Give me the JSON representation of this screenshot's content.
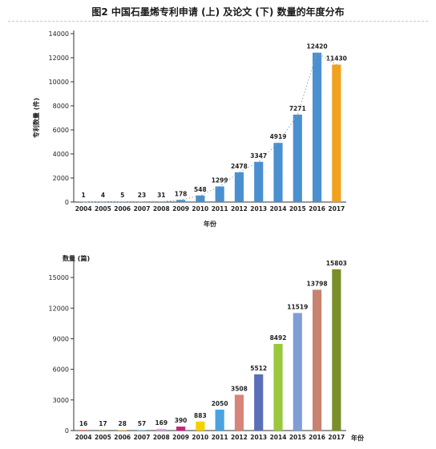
{
  "header": {
    "title": "图2  中国石墨烯专利申请 (上) 及论文 (下) 数量的年度分布"
  },
  "chart_data": [
    {
      "type": "bar",
      "ylabel": "专利数量 (件)",
      "xlabel": "年份",
      "categories": [
        "2004",
        "2005",
        "2006",
        "2007",
        "2008",
        "2009",
        "2010",
        "2011",
        "2012",
        "2013",
        "2014",
        "2015",
        "2016",
        "2017"
      ],
      "values": [
        1,
        4,
        5,
        23,
        31,
        178,
        548,
        1299,
        2478,
        3347,
        4919,
        7271,
        12420,
        11430
      ],
      "yticks": [
        0,
        2000,
        4000,
        6000,
        8000,
        10000,
        12000,
        14000
      ],
      "ylim": [
        0,
        14000
      ],
      "colors": [
        "#4a90d0",
        "#4a90d0",
        "#4a90d0",
        "#4a90d0",
        "#4a90d0",
        "#4a90d0",
        "#4a90d0",
        "#4a90d0",
        "#4a90d0",
        "#4a90d0",
        "#4a90d0",
        "#4a90d0",
        "#4a90d0",
        "#f0a21e"
      ],
      "trendline": true,
      "grid": false
    },
    {
      "type": "bar",
      "ylabel": "数量 (篇)",
      "xlabel": "年份",
      "categories": [
        "2004",
        "2005",
        "2006",
        "2007",
        "2008",
        "2009",
        "2010",
        "2011",
        "2012",
        "2013",
        "2014",
        "2015",
        "2016",
        "2017"
      ],
      "values": [
        16,
        17,
        28,
        57,
        169,
        390,
        883,
        2050,
        3508,
        5512,
        8492,
        11519,
        13798,
        15803
      ],
      "yticks": [
        0,
        3000,
        6000,
        9000,
        12000,
        15000
      ],
      "ylim": [
        0,
        16500
      ],
      "colors": [
        "#e33b2f",
        "#5b8a3c",
        "#f0b428",
        "#58c3d8",
        "#e7a3d8",
        "#c8257a",
        "#f5d000",
        "#4aa3e0",
        "#d9847a",
        "#5a6fb8",
        "#9ac83c",
        "#7f9ed6",
        "#c8826f",
        "#7a8f2a"
      ],
      "grid": false
    }
  ]
}
